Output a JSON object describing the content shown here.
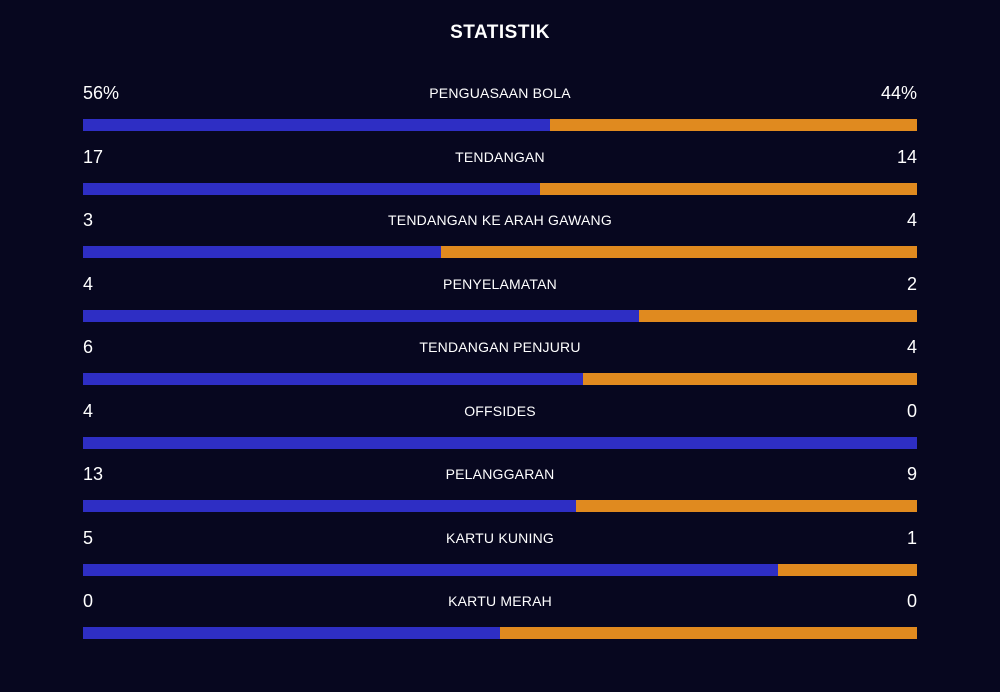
{
  "title": "STATISTIK",
  "colors": {
    "background": "#07071f",
    "home": "#2e2ec4",
    "away": "#e08a1f"
  },
  "stats": [
    {
      "label": "PENGUASAAN BOLA",
      "home": "56%",
      "away": "44%",
      "home_share": 0.56
    },
    {
      "label": "TENDANGAN",
      "home": "17",
      "away": "14",
      "home_share": 0.548
    },
    {
      "label": "TENDANGAN KE ARAH GAWANG",
      "home": "3",
      "away": "4",
      "home_share": 0.429
    },
    {
      "label": "PENYELAMATAN",
      "home": "4",
      "away": "2",
      "home_share": 0.667
    },
    {
      "label": "TENDANGAN PENJURU",
      "home": "6",
      "away": "4",
      "home_share": 0.6
    },
    {
      "label": "OFFSIDES",
      "home": "4",
      "away": "0",
      "home_share": 1.0
    },
    {
      "label": "PELANGGARAN",
      "home": "13",
      "away": "9",
      "home_share": 0.591
    },
    {
      "label": "KARTU KUNING",
      "home": "5",
      "away": "1",
      "home_share": 0.833
    },
    {
      "label": "KARTU MERAH",
      "home": "0",
      "away": "0",
      "home_share": 0.5
    }
  ]
}
